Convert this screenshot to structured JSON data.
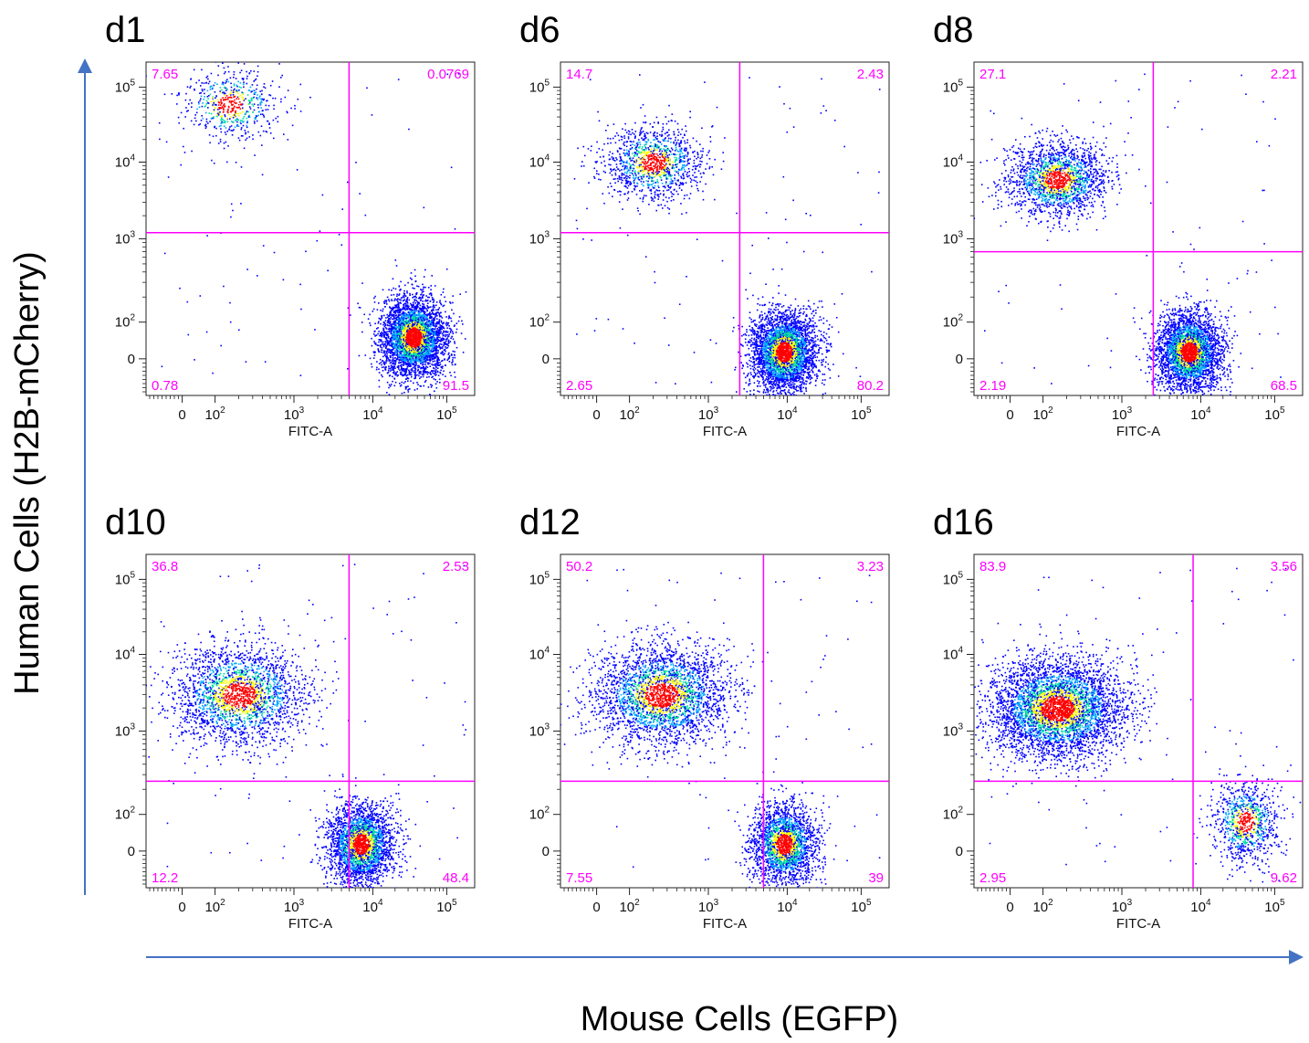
{
  "figure": {
    "y_axis_title": "Human Cells (H2B-mCherry)",
    "x_axis_title": "Mouse Cells (EGFP)",
    "arrow_color": "#4472c4",
    "gate_color": "#ff00ff",
    "density_colors": [
      "#0000ff",
      "#00aaff",
      "#00e0a0",
      "#ffff00",
      "#ff0000"
    ]
  },
  "chart_data": [
    {
      "type": "scatter",
      "title": "d1",
      "xlabel": "FITC-A",
      "ylabel": "",
      "scale": "biexponential",
      "x_ticks": [
        "0",
        "10^2",
        "10^3",
        "10^4",
        "10^5"
      ],
      "y_ticks": [
        "0",
        "10^2",
        "10^3",
        "10^4",
        "10^5"
      ],
      "gate": {
        "x": 5000,
        "y": 1200
      },
      "quadrants": {
        "upper_left": "7.65",
        "upper_right": "0.0769",
        "lower_left": "0.78",
        "lower_right": "91.5"
      },
      "populations": [
        {
          "x": 150,
          "y": 60000,
          "n": 600
        },
        {
          "x": 35000,
          "y": 60,
          "n": 3600
        }
      ]
    },
    {
      "type": "scatter",
      "title": "d6",
      "xlabel": "FITC-A",
      "ylabel": "",
      "scale": "biexponential",
      "x_ticks": [
        "0",
        "10^2",
        "10^3",
        "10^4",
        "10^5"
      ],
      "y_ticks": [
        "0",
        "10^2",
        "10^3",
        "10^4",
        "10^5"
      ],
      "gate": {
        "x": 2500,
        "y": 1200
      },
      "quadrants": {
        "upper_left": "14.7",
        "upper_right": "2.43",
        "lower_left": "2.65",
        "lower_right": "80.2"
      },
      "populations": [
        {
          "x": 200,
          "y": 10000,
          "n": 1200
        },
        {
          "x": 9000,
          "y": 20,
          "n": 3500
        }
      ]
    },
    {
      "type": "scatter",
      "title": "d8",
      "xlabel": "FITC-A",
      "ylabel": "",
      "scale": "biexponential",
      "x_ticks": [
        "0",
        "10^2",
        "10^3",
        "10^4",
        "10^5"
      ],
      "y_ticks": [
        "0",
        "10^2",
        "10^3",
        "10^4",
        "10^5"
      ],
      "gate": {
        "x": 2500,
        "y": 700
      },
      "quadrants": {
        "upper_left": "27.1",
        "upper_right": "2.21",
        "lower_left": "2.19",
        "lower_right": "68.5"
      },
      "populations": [
        {
          "x": 150,
          "y": 6000,
          "n": 1800
        },
        {
          "x": 7000,
          "y": 20,
          "n": 3100
        }
      ]
    },
    {
      "type": "scatter",
      "title": "d10",
      "xlabel": "FITC-A",
      "ylabel": "",
      "scale": "biexponential",
      "x_ticks": [
        "0",
        "10^2",
        "10^3",
        "10^4",
        "10^5"
      ],
      "y_ticks": [
        "0",
        "10^2",
        "10^3",
        "10^4",
        "10^5"
      ],
      "gate": {
        "x": 5000,
        "y": 250
      },
      "quadrants": {
        "upper_left": "36.8",
        "upper_right": "2.53",
        "lower_left": "12.2",
        "lower_right": "48.4"
      },
      "populations": [
        {
          "x": 200,
          "y": 3000,
          "n": 2300
        },
        {
          "x": 7000,
          "y": 20,
          "n": 2600
        }
      ]
    },
    {
      "type": "scatter",
      "title": "d12",
      "xlabel": "FITC-A",
      "ylabel": "",
      "scale": "biexponential",
      "x_ticks": [
        "0",
        "10^2",
        "10^3",
        "10^4",
        "10^5"
      ],
      "y_ticks": [
        "0",
        "10^2",
        "10^3",
        "10^4",
        "10^5"
      ],
      "gate": {
        "x": 5000,
        "y": 250
      },
      "quadrants": {
        "upper_left": "50.2",
        "upper_right": "3.23",
        "lower_left": "7.55",
        "lower_right": "39"
      },
      "populations": [
        {
          "x": 250,
          "y": 3000,
          "n": 2800
        },
        {
          "x": 9000,
          "y": 20,
          "n": 2200
        }
      ]
    },
    {
      "type": "scatter",
      "title": "d16",
      "xlabel": "FITC-A",
      "ylabel": "",
      "scale": "biexponential",
      "x_ticks": [
        "0",
        "10^2",
        "10^3",
        "10^4",
        "10^5"
      ],
      "y_ticks": [
        "0",
        "10^2",
        "10^3",
        "10^4",
        "10^5"
      ],
      "gate": {
        "x": 8000,
        "y": 250
      },
      "quadrants": {
        "upper_left": "83.9",
        "upper_right": "3.56",
        "lower_left": "2.95",
        "lower_right": "9.62"
      },
      "populations": [
        {
          "x": 150,
          "y": 2000,
          "n": 4200
        },
        {
          "x": 40000,
          "y": 80,
          "n": 900
        }
      ]
    }
  ]
}
